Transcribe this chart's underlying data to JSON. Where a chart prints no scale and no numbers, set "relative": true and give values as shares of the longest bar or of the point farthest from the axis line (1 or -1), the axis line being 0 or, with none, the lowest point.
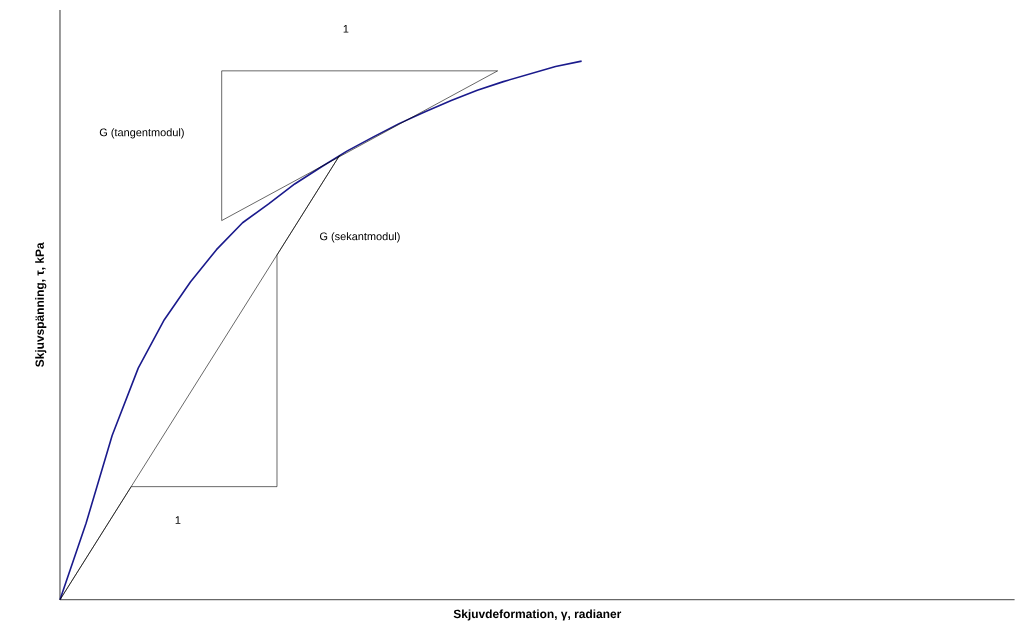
{
  "chart_data": {
    "type": "line",
    "relative": true,
    "xlabel": "Skjuvdeformation, γ, radianer",
    "ylabel": "Skjuvspänning, τ, kPa",
    "marker": "none",
    "line_style": "solid",
    "categories": [
      null,
      null,
      null,
      null,
      null,
      null,
      null,
      null,
      null,
      null,
      null,
      null,
      null,
      null,
      null,
      null,
      null,
      null,
      null,
      null,
      null
    ],
    "series": [
      {
        "color": "#1a1a8c",
        "values": [
          0,
          0.142,
          0.305,
          0.43,
          0.52,
          0.59,
          0.65,
          0.7,
          0.735,
          0.772,
          0.803,
          0.833,
          0.859,
          0.884,
          0.906,
          0.927,
          0.946,
          0.962,
          0.976,
          0.99,
          1
        ]
      }
    ],
    "annotations": [
      "1",
      "G (tangentmodul)",
      "G (sekantmodul)",
      "1"
    ]
  }
}
